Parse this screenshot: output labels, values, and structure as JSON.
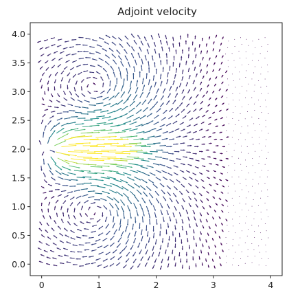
{
  "chart_data": {
    "type": "quiver",
    "title": "Adjoint velocity",
    "xlabel": "",
    "ylabel": "",
    "xlim": [
      -0.2,
      4.2
    ],
    "ylim": [
      -0.2,
      4.2
    ],
    "xticks": [
      "0",
      "1",
      "2",
      "3",
      "4"
    ],
    "yticks": [
      "0.0",
      "0.5",
      "1.0",
      "1.5",
      "2.0",
      "2.5",
      "3.0",
      "3.5",
      "4.0"
    ],
    "grid": false,
    "colormap": "viridis",
    "field": {
      "description_source": "arrow field over domain [0,4] x [0,4]",
      "source_point": [
        0.9,
        2.0
      ],
      "dipole_centers": [
        [
          1.0,
          3.0
        ],
        [
          1.0,
          1.0
        ]
      ],
      "max_extent_x": 2.7
    },
    "colors": {
      "low": "#440154",
      "mid_low": "#3b528b",
      "mid": "#21918c",
      "mid_high": "#5ec962",
      "high": "#fde725"
    }
  }
}
